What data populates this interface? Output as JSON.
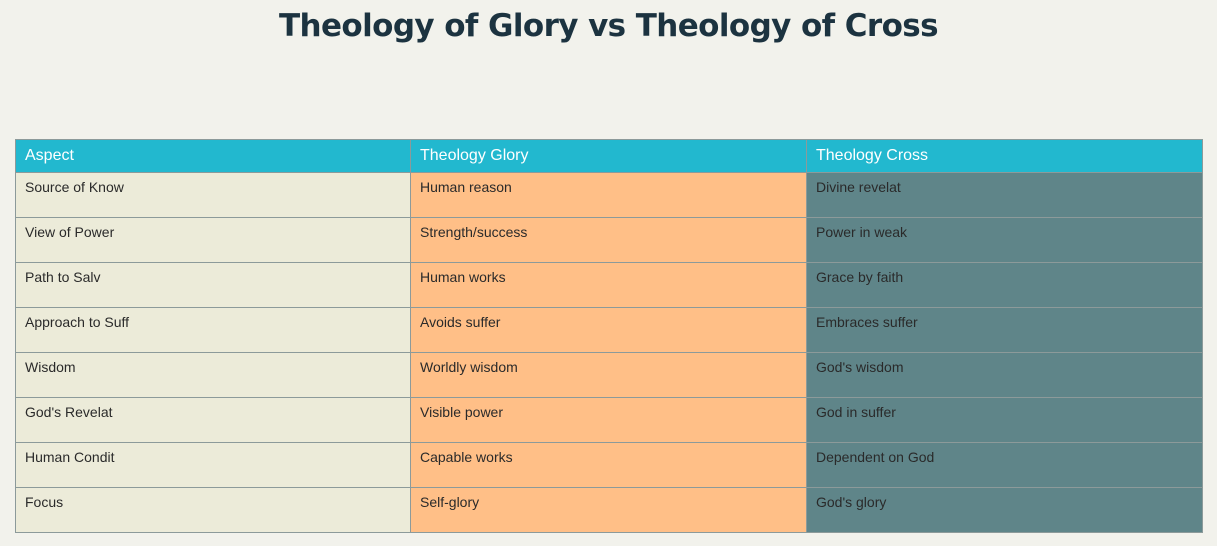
{
  "title": "Theology of Glory vs Theology of Cross",
  "table": {
    "headers": [
      "Aspect",
      "Theology Glory",
      "Theology Cross"
    ],
    "rows": [
      [
        "Source of Know",
        "Human reason",
        "Divine revelat"
      ],
      [
        "View of Power",
        "Strength/success",
        "Power in weak"
      ],
      [
        "Path to Salv",
        "Human works",
        "Grace by faith"
      ],
      [
        "Approach to Suff",
        "Avoids suffer",
        "Embraces suffer"
      ],
      [
        "Wisdom",
        "Worldly wisdom",
        "God's wisdom"
      ],
      [
        "God's Revelat",
        "Visible power",
        "God in suffer"
      ],
      [
        "Human Condit",
        "Capable works",
        "Dependent on God"
      ],
      [
        "Focus",
        "Self-glory",
        "God's glory"
      ]
    ]
  },
  "colors": {
    "background": "#f2f2ec",
    "header": "#22b8cf",
    "aspect_column": "#ecebd9",
    "glory_column": "#ffbf87",
    "cross_column": "#5f8589",
    "title": "#1c3340"
  }
}
